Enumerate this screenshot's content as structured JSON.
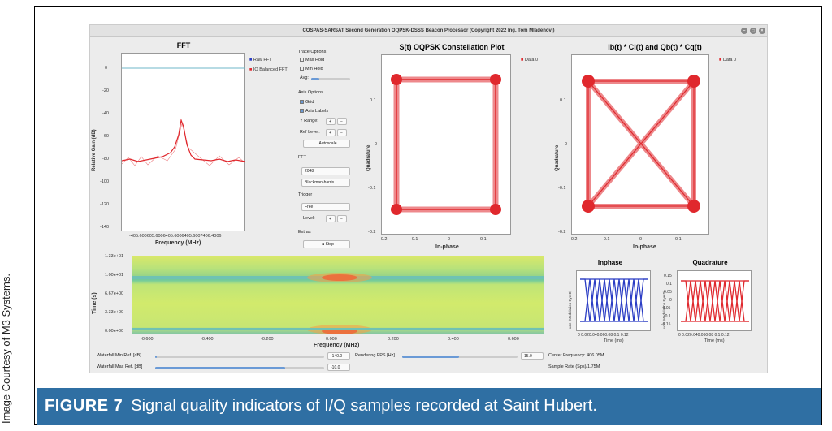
{
  "credit": "Image Courtesy of M3 Systems.",
  "caption": {
    "label": "FIGURE 7",
    "text": "Signal quality indicators of I/Q samples recorded at Saint Hubert."
  },
  "window": {
    "title": "COSPAS-SARSAT Second Generation OQPSK-DSSS Beacon Processor (Copyright 2022 Ing. Tom Mladenovi)"
  },
  "fft": {
    "title": "FFT",
    "xlabel": "Frequency (MHz)",
    "ylabel": "Relative Gain (dB)",
    "yticks": [
      "0",
      "-20",
      "-40",
      "-60",
      "-80",
      "-100",
      "-120",
      "-140"
    ],
    "xticks": "-405.600605.6006405.6006405.6007406.4006",
    "legend": [
      "Raw FFT",
      "IQ Balanced FFT"
    ]
  },
  "controls": {
    "trace_options": "Trace Options",
    "max_hold": "Max Hold",
    "min_hold": "Min Hold",
    "avg": "Avg:",
    "axis_options": "Axis Options",
    "grid": "Grid",
    "axis_labels": "Axis Labels",
    "y_range": "Y Range:",
    "ref_level": "Ref Level:",
    "autoscale": "Autoscale",
    "fft": "FFT",
    "fft_size": "2048",
    "window": "Blackman-harris",
    "trigger": "Trigger",
    "trigger_mode": "Free",
    "level": "Level:",
    "extras": "Extras",
    "stop": "Stop"
  },
  "constellation": {
    "title": "S(t) OQPSK Constellation Plot",
    "xlabel": "In-phase",
    "ylabel": "Quadrature",
    "legend": "Data 0",
    "xticks": [
      "-0.2",
      "-0.1",
      "0",
      "0.1"
    ],
    "yticks": [
      "0.1",
      "0",
      "-0.1",
      "-0.2"
    ]
  },
  "product": {
    "title": "Ib(t) * Ci(t) and Qb(t) * Cq(t)",
    "xlabel": "In-phase",
    "ylabel": "Quadrature",
    "legend": "Data 0",
    "xticks": [
      "-0.2",
      "-0.1",
      "0",
      "0.1"
    ],
    "yticks": [
      "0.1",
      "0",
      "-0.1",
      "-0.2"
    ]
  },
  "waterfall": {
    "ylabel": "Time (s)",
    "xlabel": "Frequency (MHz)",
    "yticks": [
      "1.33e+01",
      "1.00e+01",
      "6.67e+00",
      "3.33e+00",
      "0.00e+00"
    ],
    "xticks": [
      "-0.600",
      "-0.400",
      "-0.200",
      "0.000",
      "0.200",
      "0.400",
      "0.600"
    ]
  },
  "inphase": {
    "title": "Inphase",
    "xlabel": "Time (ms)",
    "ylabel": "ude (Modulation Eye D)",
    "xticks": "0 0.020.040.060.08 0.1 0.12"
  },
  "quadrature": {
    "title": "Quadrature",
    "xlabel": "Time (ms)",
    "ylabel": "ude (Modulation Eye D)",
    "xticks": "0 0.020.040.060.08 0.1 0.12",
    "yticks": [
      "0.15",
      "0.1",
      "0.05",
      "0",
      "-0.05",
      "-0.1",
      "-0.15"
    ]
  },
  "bottom": {
    "wf_min": "Waterfall Min Ref. [dB]",
    "wf_min_val": "-140.0",
    "wf_max": "Waterfall Max Ref. [dB]",
    "wf_max_val": "-10.0",
    "fps": "Rendering FPS [Hz]",
    "fps_val": "15.0",
    "center": "Center Frequency: 406.05M",
    "rate": "Sample Rate (Sps)/1.75M"
  },
  "colors": {
    "accent": "#2f6fa3",
    "trace": "#e0282d",
    "blue": "#2a3cc4"
  }
}
